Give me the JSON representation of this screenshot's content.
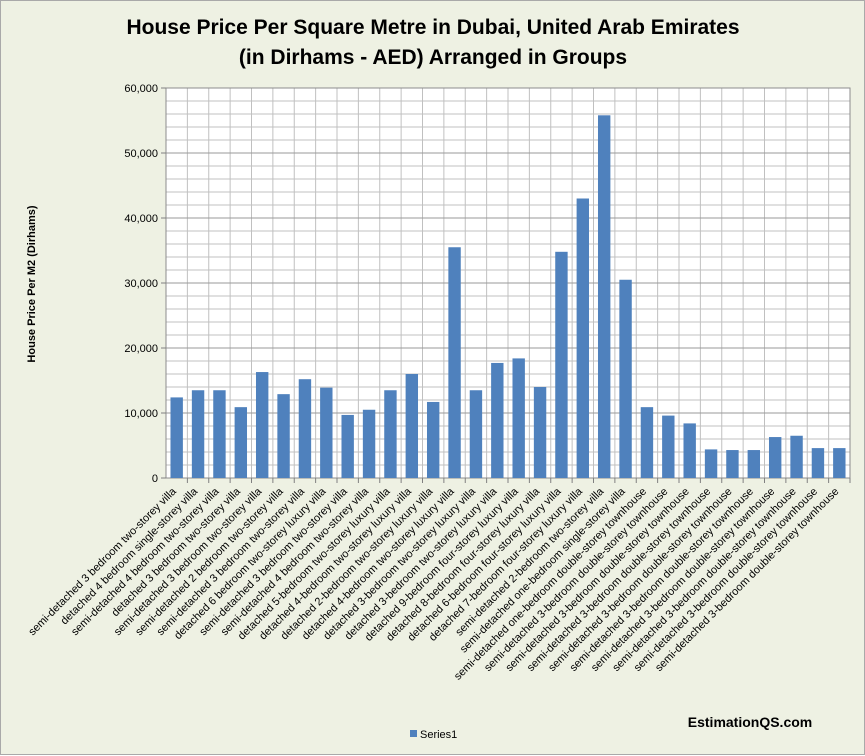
{
  "chart_data": {
    "type": "bar",
    "title": "House Price Per Square Metre in Dubai, United Arab Emirates",
    "subtitle": "(in Dirhams - AED) Arranged in Groups",
    "xlabel": "",
    "ylabel": "House Price Per M2 (Dirhams)",
    "ylim": [
      0,
      60000
    ],
    "yticks": [
      0,
      10000,
      20000,
      30000,
      40000,
      50000,
      60000
    ],
    "ytick_labels": [
      "0",
      "10,000",
      "20,000",
      "30,000",
      "40,000",
      "50,000",
      "60,000"
    ],
    "grid": true,
    "legend_position": "bottom",
    "bar_color": "#4f81bd",
    "categories": [
      "semi-detached 3 bedroom two-storey villa",
      "detached 4 bedroom single-storey villa",
      "semi-detached 4 bedroom two-storey villa",
      "detached 3 bedroom two-storey villa",
      "semi-detached 3 bedroom two-storey villa",
      "semi-detached 2 bedroom two-storey villa",
      "semi-detached 3 bedroom two-storey villa",
      "detached 6 bedroom two-storey luxury villa",
      "semi-detached 3 bedroom two-storey villa",
      "semi-detached 4 bedroom two-storey villa",
      "detached 5-bedroom two-storey luxury villa",
      "detached 4-bedroom two-storey luxury villa",
      "detached 2-bedroom two-storey luxury villa",
      "detached 4-bedroom two-storey luxury villa",
      "detached 3-bedroom two-storey luxury villa",
      "detached 3-bedroom two-storey luxury villa",
      "detached 9-bedroom four-storey luxury villa",
      "detached 8-bedroom four-storey luxury villa",
      "detached 6-bedroom four-storey luxury villa",
      "detached 7-bedroom four-storey luxury villa",
      "semi-detached 2-bedroom two-storey villa",
      "semi-detached one-bedroom single-storey villa",
      "semi-detached one-bedroom double-storey townhouse",
      "semi-detached 3-bedroom double-storey townhouse",
      "semi-detached 3-bedroom double-storey townhouse",
      "semi-detached 3-bedroom double-storey townhouse",
      "semi-detached 3-bedroom double-storey townhouse",
      "semi-detached 3-bedroom double-storey townhouse",
      "semi-detached 3-bedroom double-storey townhouse",
      "semi-detached 3-bedroom double-storey townhouse",
      "semi-detached 3-bedroom double-storey townhouse",
      "semi-detached 3-bedroom double-storey townhouse"
    ],
    "series": [
      {
        "name": "Series1",
        "values": [
          12400,
          13500,
          13500,
          10900,
          16300,
          12900,
          15200,
          13900,
          9700,
          10500,
          13500,
          16000,
          11700,
          35500,
          13500,
          17700,
          18400,
          14000,
          34800,
          43000,
          55800,
          30500,
          10900,
          9600,
          8400,
          4400,
          4300,
          4300,
          6300,
          6500,
          4600,
          4600
        ]
      }
    ],
    "source": "EstimationQS.com"
  }
}
